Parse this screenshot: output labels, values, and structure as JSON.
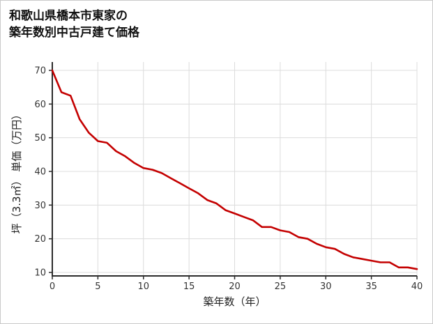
{
  "title": {
    "line1": "和歌山県橋本市東家の",
    "line2": "築年数別中古戸建て価格"
  },
  "chart_data": {
    "type": "line",
    "title": "和歌山県橋本市東家の築年数別中古戸建て価格",
    "xlabel": "築年数（年）",
    "ylabel": "坪（3.3㎡） 単価（万円）",
    "x": [
      0,
      1,
      2,
      3,
      4,
      5,
      6,
      7,
      8,
      9,
      10,
      11,
      12,
      13,
      14,
      15,
      16,
      17,
      18,
      19,
      20,
      21,
      22,
      23,
      24,
      25,
      26,
      27,
      28,
      29,
      30,
      31,
      32,
      33,
      34,
      35,
      36,
      37,
      38,
      39,
      40
    ],
    "values": [
      70,
      63.5,
      62.5,
      55.5,
      51.5,
      49,
      48.5,
      46,
      44.5,
      42.5,
      41,
      40.5,
      39.5,
      38,
      36.5,
      35,
      33.5,
      31.5,
      30.5,
      28.5,
      27.5,
      26.5,
      25.5,
      23.5,
      23.5,
      22.5,
      22,
      20.5,
      20,
      18.5,
      17.5,
      17,
      15.5,
      14.5,
      14,
      13.5,
      13,
      13,
      11.5,
      11.5,
      11
    ],
    "xlim": [
      0,
      40
    ],
    "ylim": [
      10,
      70
    ],
    "xticks": [
      0,
      5,
      10,
      15,
      20,
      25,
      30,
      35,
      40
    ],
    "yticks": [
      10,
      20,
      30,
      40,
      50,
      60,
      70
    ],
    "grid": true,
    "legend": "none",
    "colors": {
      "line": "#c40000",
      "grid": "#dcdcdc",
      "axis": "#2b2b2b",
      "tick_text": "#333333",
      "title_text": "#111111"
    }
  }
}
